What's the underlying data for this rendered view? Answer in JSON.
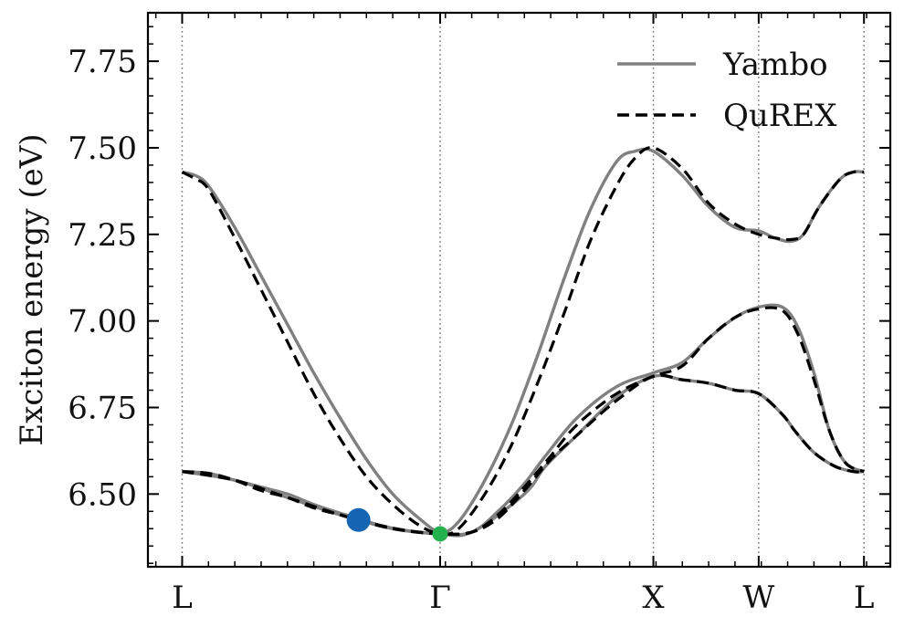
{
  "chart_data": {
    "type": "line",
    "title": "",
    "ylabel": "Exciton energy (eV)",
    "xlabel": "",
    "ylim": [
      6.29,
      7.89
    ],
    "xlim": [
      -0.13,
      2.69
    ],
    "x_ticks": [
      {
        "label": "L",
        "x": 0.0
      },
      {
        "label": "Γ",
        "x": 0.98
      },
      {
        "label": "X",
        "x": 1.79
      },
      {
        "label": "W",
        "x": 2.19
      },
      {
        "label": "L",
        "x": 2.59
      }
    ],
    "y_ticks": [
      "6.50",
      "6.75",
      "7.00",
      "7.25",
      "7.50",
      "7.75"
    ],
    "y_minor_step": 0.05,
    "grid": "vertical dotted lines at high-symmetry points",
    "legend": {
      "position": "top-right",
      "entries": [
        "Yambo",
        "QuREX"
      ]
    },
    "series": [
      {
        "name": "Yambo",
        "style": "solid",
        "color": "#808080",
        "bands": [
          {
            "x": [
              0.0,
              0.05,
              0.1,
              0.2,
              0.3,
              0.4,
              0.5,
              0.6,
              0.7,
              0.8,
              0.9,
              0.98,
              1.05,
              1.15,
              1.25,
              1.35,
              1.45,
              1.55,
              1.65,
              1.72,
              1.79,
              1.9,
              2.0,
              2.1,
              2.19,
              2.25,
              2.31,
              2.36,
              2.42,
              2.5,
              2.55,
              2.59
            ],
            "y": [
              7.43,
              7.42,
              7.39,
              7.27,
              7.13,
              6.99,
              6.85,
              6.72,
              6.6,
              6.5,
              6.43,
              6.39,
              6.42,
              6.54,
              6.7,
              6.9,
              7.12,
              7.32,
              7.46,
              7.49,
              7.49,
              7.42,
              7.33,
              7.27,
              7.26,
              7.24,
              7.23,
              7.25,
              7.33,
              7.41,
              7.43,
              7.43
            ]
          },
          {
            "x": [
              0.0,
              0.1,
              0.2,
              0.3,
              0.4,
              0.5,
              0.6,
              0.67,
              0.75,
              0.85,
              0.98,
              1.1,
              1.3,
              1.38,
              1.5,
              1.65,
              1.79,
              1.9,
              2.0,
              2.1,
              2.19,
              2.28,
              2.33,
              2.4,
              2.48,
              2.55,
              2.59
            ],
            "y": [
              6.565,
              6.56,
              6.54,
              6.52,
              6.5,
              6.47,
              6.445,
              6.43,
              6.41,
              6.395,
              6.385,
              6.39,
              6.5,
              6.58,
              6.67,
              6.78,
              6.84,
              6.83,
              6.82,
              6.8,
              6.79,
              6.73,
              6.68,
              6.62,
              6.58,
              6.565,
              6.565
            ]
          },
          {
            "x": [
              0.0,
              0.2,
              0.4,
              0.6,
              0.8,
              0.98,
              1.1,
              1.2,
              1.3,
              1.38,
              1.5,
              1.65,
              1.79,
              1.9,
              2.0,
              2.1,
              2.19,
              2.28,
              2.34,
              2.4,
              2.46,
              2.52,
              2.59
            ],
            "y": [
              6.565,
              6.54,
              6.49,
              6.44,
              6.4,
              6.385,
              6.39,
              6.45,
              6.53,
              6.61,
              6.72,
              6.81,
              6.85,
              6.88,
              6.95,
              7.01,
              7.04,
              7.04,
              6.98,
              6.85,
              6.68,
              6.59,
              6.565
            ]
          }
        ]
      },
      {
        "name": "QuREX",
        "style": "dashed",
        "color": "#000000",
        "bands": [
          {
            "x": [
              0.0,
              0.05,
              0.1,
              0.2,
              0.3,
              0.4,
              0.5,
              0.6,
              0.7,
              0.8,
              0.9,
              0.98,
              1.05,
              1.15,
              1.25,
              1.35,
              1.45,
              1.55,
              1.65,
              1.72,
              1.79,
              1.9,
              2.0,
              2.1,
              2.19,
              2.25,
              2.31,
              2.36,
              2.42,
              2.5,
              2.55,
              2.59
            ],
            "y": [
              7.43,
              7.41,
              7.38,
              7.24,
              7.09,
              6.94,
              6.79,
              6.66,
              6.55,
              6.47,
              6.41,
              6.385,
              6.4,
              6.5,
              6.64,
              6.82,
              7.02,
              7.23,
              7.39,
              7.47,
              7.5,
              7.44,
              7.34,
              7.28,
              7.25,
              7.24,
              7.235,
              7.25,
              7.33,
              7.41,
              7.43,
              7.43
            ]
          },
          {
            "x": [
              0.0,
              0.1,
              0.2,
              0.3,
              0.4,
              0.5,
              0.6,
              0.67,
              0.75,
              0.85,
              0.98,
              1.1,
              1.2,
              1.3,
              1.4,
              1.5,
              1.65,
              1.79,
              1.9,
              2.0,
              2.1,
              2.19,
              2.28,
              2.33,
              2.4,
              2.48,
              2.55,
              2.59
            ],
            "y": [
              6.565,
              6.56,
              6.54,
              6.51,
              6.49,
              6.46,
              6.44,
              6.425,
              6.41,
              6.395,
              6.385,
              6.39,
              6.43,
              6.51,
              6.6,
              6.67,
              6.77,
              6.84,
              6.83,
              6.82,
              6.8,
              6.79,
              6.73,
              6.68,
              6.62,
              6.58,
              6.565,
              6.565
            ]
          },
          {
            "x": [
              0.0,
              0.2,
              0.4,
              0.6,
              0.8,
              0.98,
              1.1,
              1.2,
              1.3,
              1.4,
              1.5,
              1.65,
              1.79,
              1.9,
              2.0,
              2.1,
              2.19,
              2.28,
              2.34,
              2.4,
              2.46,
              2.52,
              2.59
            ],
            "y": [
              6.565,
              6.54,
              6.49,
              6.44,
              6.4,
              6.385,
              6.39,
              6.44,
              6.52,
              6.61,
              6.7,
              6.79,
              6.84,
              6.87,
              6.95,
              7.01,
              7.035,
              7.03,
              6.96,
              6.83,
              6.68,
              6.59,
              6.565
            ]
          }
        ]
      }
    ],
    "markers": [
      {
        "x": 0.67,
        "y": 6.425,
        "color": "#1565b3",
        "size": "large"
      },
      {
        "x": 0.98,
        "y": 6.385,
        "color": "#22b14c",
        "size": "small"
      }
    ]
  }
}
